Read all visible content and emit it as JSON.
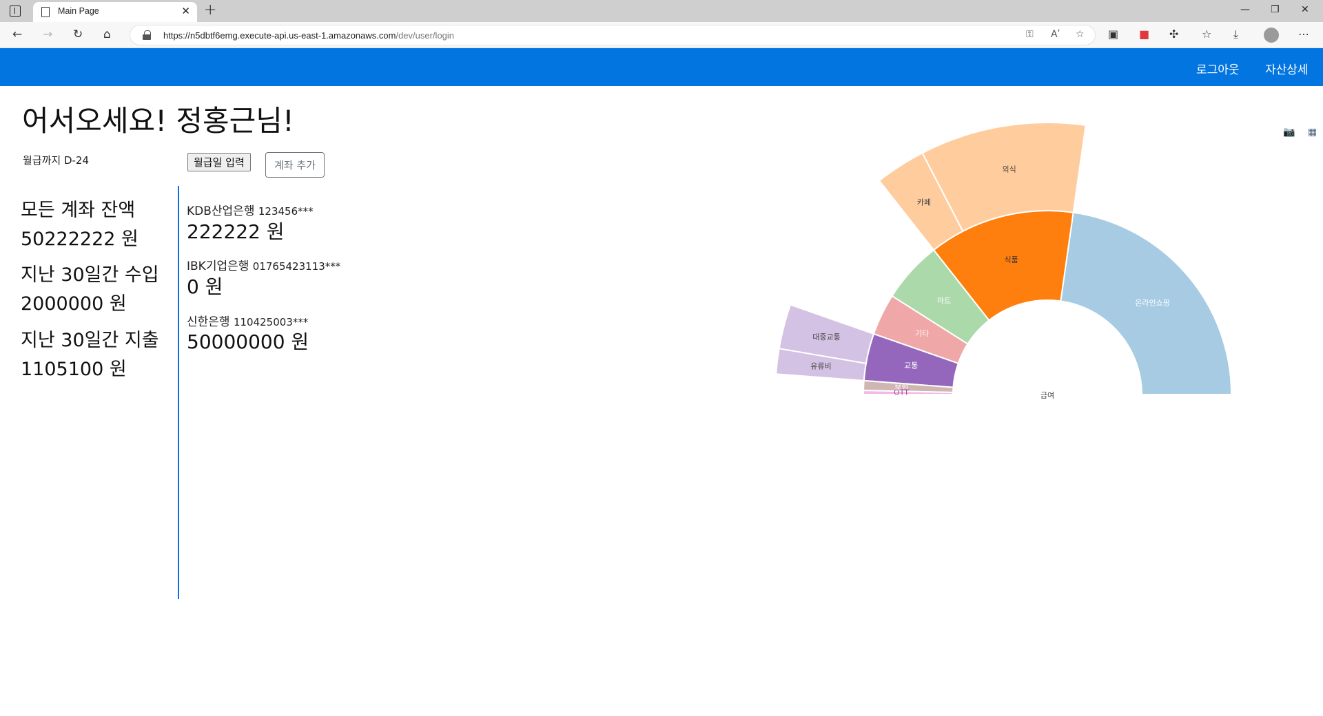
{
  "browser": {
    "tab_title": "Main Page",
    "url_host": "https://n5dbtf6emg.execute-api.us-east-1.amazonaws.com",
    "url_path": "/dev/user/login",
    "reader_icon_text": "Aʹ"
  },
  "navbar": {
    "logout_label": "로그아웃",
    "asset_detail_label": "자산상세"
  },
  "page": {
    "title": "어서오세요! 정홍근님!",
    "dday_text": "월급까지 D-24",
    "payday_button": "월급일 입력",
    "add_account_button": "계좌 추가"
  },
  "summary": {
    "total_label": "모든 계좌 잔액",
    "total_value": "50222222 원",
    "income_label": "지난 30일간 수입",
    "income_value": "2000000 원",
    "expense_label": "지난 30일간 지출",
    "expense_value": "1105100 원"
  },
  "accounts": [
    {
      "bank": "KDB산업은행",
      "number": "123456***",
      "balance": "222222 원"
    },
    {
      "bank": "IBK기업은행",
      "number": "01765423113***",
      "balance": "0 원"
    },
    {
      "bank": "신한은행",
      "number": "110425003***",
      "balance": "50000000 원"
    }
  ],
  "chart_data": {
    "type": "sunburst",
    "root": "급여",
    "unit_note": "Values estimated from slice angles (fractions of a 180-degree root, total = 1.0)",
    "children": [
      {
        "name": "온라인쇼핑",
        "value": 0.455,
        "color": "#a6cbe3",
        "label_color": "#ffffff",
        "children": []
      },
      {
        "name": "식품",
        "value": 0.257,
        "color": "#ff7f0e",
        "label_color": "#333333",
        "children": [
          {
            "name": "외식",
            "value": 0.197,
            "color": "#ffcc9e"
          },
          {
            "name": "카페",
            "value": 0.06,
            "color": "#ffcc9e"
          }
        ]
      },
      {
        "name": "마트",
        "value": 0.108,
        "color": "#abd9a9",
        "label_color": "#ffffff",
        "children": []
      },
      {
        "name": "기타",
        "value": 0.073,
        "color": "#efa8a7",
        "label_color": "#ffffff",
        "children": []
      },
      {
        "name": "교통",
        "value": 0.083,
        "color": "#9467bd",
        "label_color": "#ffffff",
        "children": [
          {
            "name": "대중교통",
            "value": 0.053,
            "color": "#d4c2e4"
          },
          {
            "name": "유류비",
            "value": 0.03,
            "color": "#d4c2e4"
          }
        ]
      },
      {
        "name": "보험",
        "value": 0.017,
        "color": "#d0b6b2",
        "label_color": "#ffffff",
        "children": []
      },
      {
        "name": "OTT",
        "value": 0.007,
        "color": "#f0b8e2",
        "label_color": "#a94aa0",
        "children": []
      }
    ]
  }
}
